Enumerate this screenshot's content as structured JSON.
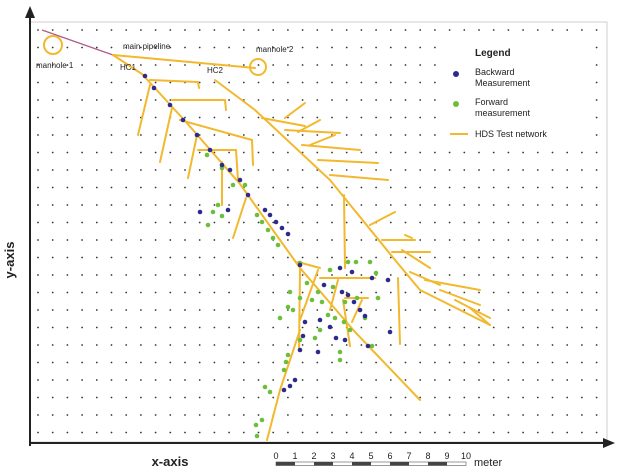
{
  "axes": {
    "y_label": "y-axis",
    "x_label": "x-axis"
  },
  "labels": {
    "manhole1": "manhole 1",
    "manhole2": "manhole 2",
    "main_pipeline": "main pipeline",
    "hc1": "HC1",
    "hc2": "HC2"
  },
  "legend": {
    "title": "Legend",
    "backward_line1": "Backward",
    "backward_line2": "Measurement",
    "forward_line1": "Forward",
    "forward_line2": "measurement",
    "network": "HDS Test network"
  },
  "scale_bar": {
    "ticks": [
      "0",
      "1",
      "2",
      "3",
      "4",
      "5",
      "6",
      "7",
      "8",
      "9",
      "10"
    ],
    "unit": "meter"
  },
  "colors": {
    "network": "#f2b82e",
    "backward": "#2c2a8c",
    "forward": "#6cbf3a",
    "main_line": "#b05a8a",
    "grid_dot": "#333333",
    "axis": "#222222"
  }
}
